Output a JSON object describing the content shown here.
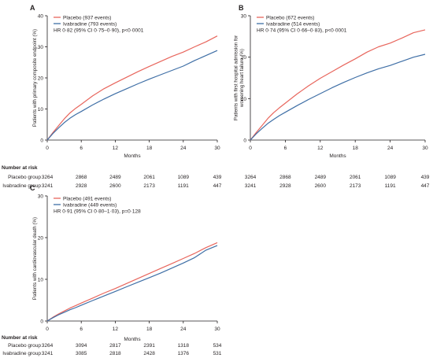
{
  "colors": {
    "placebo": "#e8665d",
    "ivabradine": "#3f6fa6",
    "axis": "#231f20",
    "text": "#231f20"
  },
  "chart_data": [
    {
      "type": "line",
      "panel": "A",
      "title": "",
      "xlabel": "Months",
      "ylabel": "Patients with primary composite endpoint (%)",
      "xlim": [
        0,
        30
      ],
      "ylim": [
        0,
        40
      ],
      "xticks": [
        0,
        6,
        12,
        18,
        24,
        30
      ],
      "yticks": [
        0,
        10,
        20,
        30,
        40
      ],
      "legend_position": "top-left",
      "grid": false,
      "hr_text": "HR 0·82 (95% CI 0·75–0·90), p<0·0001",
      "series": [
        {
          "name": "Placebo (937 events)",
          "color_key": "placebo",
          "x": [
            0,
            1,
            2,
            3,
            4,
            5,
            6,
            8,
            10,
            12,
            14,
            16,
            18,
            20,
            22,
            24,
            26,
            28,
            30
          ],
          "y": [
            0,
            2.4,
            4.6,
            6.8,
            8.7,
            10.2,
            11.5,
            14.2,
            16.5,
            18.4,
            20.2,
            22.0,
            23.7,
            25.3,
            26.9,
            28.3,
            30.0,
            31.6,
            33.5
          ]
        },
        {
          "name": "Ivabradine (793 events)",
          "color_key": "ivabradine",
          "x": [
            0,
            1,
            2,
            3,
            4,
            5,
            6,
            8,
            10,
            12,
            14,
            16,
            18,
            20,
            22,
            24,
            26,
            28,
            30
          ],
          "y": [
            0,
            2.1,
            3.9,
            5.6,
            7.0,
            8.2,
            9.2,
            11.3,
            13.2,
            14.9,
            16.5,
            18.1,
            19.6,
            21.0,
            22.4,
            23.8,
            25.6,
            27.2,
            28.8
          ]
        }
      ],
      "risk_table": {
        "title": "Number at risk",
        "rows": [
          {
            "label": "Placebo group",
            "values": [
              "3264",
              "2868",
              "2489",
              "2061",
              "1089",
              "439"
            ]
          },
          {
            "label": "Ivabradine group",
            "values": [
              "3241",
              "2928",
              "2600",
              "2173",
              "1191",
              "447"
            ]
          }
        ]
      }
    },
    {
      "type": "line",
      "panel": "B",
      "title": "",
      "xlabel": "Months",
      "ylabel": "Patients with first hospital admission for worsening heart failure (%)",
      "xlim": [
        0,
        30
      ],
      "ylim": [
        0,
        30
      ],
      "xticks": [
        0,
        6,
        12,
        18,
        24,
        30
      ],
      "yticks": [
        0,
        10,
        20,
        30
      ],
      "legend_position": "top-left",
      "grid": false,
      "hr_text": "HR 0·74 (95% CI 0·66–0·83), p<0·0001",
      "series": [
        {
          "name": "Placebo (672 events)",
          "color_key": "placebo",
          "x": [
            0,
            1,
            2,
            3,
            4,
            5,
            6,
            8,
            10,
            12,
            14,
            16,
            18,
            20,
            22,
            24,
            26,
            28,
            30
          ],
          "y": [
            0,
            1.8,
            3.5,
            5.2,
            6.6,
            7.8,
            8.9,
            11.1,
            13.1,
            14.9,
            16.5,
            18.1,
            19.6,
            21.2,
            22.5,
            23.4,
            24.6,
            25.9,
            26.6
          ]
        },
        {
          "name": "Ivabradine (514 events)",
          "color_key": "ivabradine",
          "x": [
            0,
            1,
            2,
            3,
            4,
            5,
            6,
            8,
            10,
            12,
            14,
            16,
            18,
            20,
            22,
            24,
            26,
            28,
            30
          ],
          "y": [
            0,
            1.5,
            2.8,
            4.0,
            5.0,
            5.9,
            6.7,
            8.3,
            9.8,
            11.2,
            12.6,
            13.9,
            15.1,
            16.2,
            17.2,
            18.0,
            19.0,
            20.0,
            20.7
          ]
        }
      ],
      "risk_table": {
        "title": "",
        "rows": [
          {
            "label": "",
            "values": [
              "3264",
              "2868",
              "2489",
              "2061",
              "1089",
              "439"
            ]
          },
          {
            "label": "",
            "values": [
              "3241",
              "2928",
              "2600",
              "2173",
              "1191",
              "447"
            ]
          }
        ]
      }
    },
    {
      "type": "line",
      "panel": "C",
      "title": "",
      "xlabel": "Months",
      "ylabel": "Patients with cardiovascular death (%)",
      "xlim": [
        0,
        30
      ],
      "ylim": [
        0,
        30
      ],
      "xticks": [
        0,
        6,
        12,
        18,
        24,
        30
      ],
      "yticks": [
        0,
        10,
        20,
        30
      ],
      "legend_position": "top-left",
      "grid": false,
      "hr_text": "HR 0·91 (95% CI 0·80–1·03), p=0·128",
      "series": [
        {
          "name": "Placebo (491 events)",
          "color_key": "placebo",
          "x": [
            0,
            1,
            2,
            3,
            4,
            5,
            6,
            8,
            10,
            12,
            14,
            16,
            18,
            20,
            22,
            24,
            26,
            28,
            30
          ],
          "y": [
            0,
            0.9,
            1.7,
            2.4,
            3.1,
            3.7,
            4.3,
            5.5,
            6.7,
            7.8,
            9.0,
            10.2,
            11.4,
            12.6,
            13.8,
            15.0,
            16.2,
            17.6,
            18.8
          ]
        },
        {
          "name": "Ivabradine (449 events)",
          "color_key": "ivabradine",
          "x": [
            0,
            1,
            2,
            3,
            4,
            5,
            6,
            8,
            10,
            12,
            14,
            16,
            18,
            20,
            22,
            24,
            26,
            28,
            30
          ],
          "y": [
            0,
            0.8,
            1.5,
            2.1,
            2.7,
            3.2,
            3.8,
            4.9,
            6.0,
            7.1,
            8.2,
            9.3,
            10.4,
            11.5,
            12.7,
            13.9,
            15.2,
            17.0,
            18.1
          ]
        }
      ],
      "risk_table": {
        "title": "Number at risk",
        "rows": [
          {
            "label": "Placebo group",
            "values": [
              "3264",
              "3094",
              "2817",
              "2391",
              "1318",
              "534"
            ]
          },
          {
            "label": "Ivabradine group",
            "values": [
              "3241",
              "3085",
              "2818",
              "2428",
              "1376",
              "531"
            ]
          }
        ]
      }
    }
  ]
}
